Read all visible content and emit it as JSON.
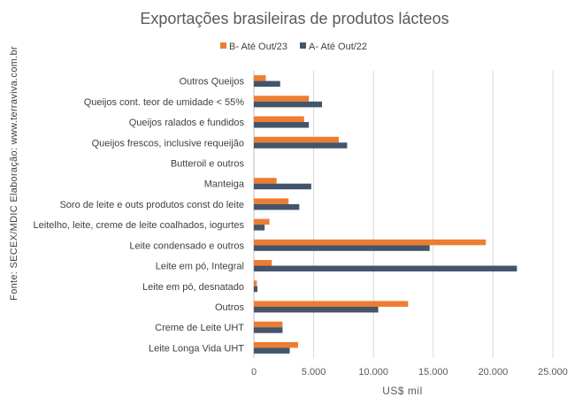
{
  "chart_data": {
    "type": "bar",
    "orientation": "horizontal",
    "title": "Exportações brasileiras de produtos lácteos",
    "xlabel": "US$ mil",
    "ylabel": "",
    "side_note": "Fonte: SECEX/MDIC      Elaboração: www.terraviva.com.br",
    "xlim": [
      0,
      25000
    ],
    "x_ticks": [
      "0",
      "5.000",
      "10.000",
      "15.000",
      "20.000",
      "25.000"
    ],
    "grid": "vertical",
    "legend_position": "top",
    "categories": [
      "Outros Queijos",
      "Queijos cont. teor de umidade < 55%",
      "Queijos ralados e fundidos",
      "Queijos frescos, inclusive requeijão",
      "Butteroil e outros",
      "Manteiga",
      "Soro de leite e outs produtos const do leite",
      "Leitelho, leite, creme de leite coalhados, iogurtes",
      "Leite condensado e outros",
      "Leite em pó, Integral",
      "Leite em pó, desnatado",
      "Outros",
      "Creme de Leite UHT",
      "Leite Longa Vida UHT"
    ],
    "series": [
      {
        "name": "B- Até Out/23",
        "color": "#ED7D31",
        "values": [
          1000,
          4600,
          4200,
          7100,
          0,
          1900,
          2900,
          1300,
          19400,
          1500,
          250,
          12900,
          2400,
          3700
        ]
      },
      {
        "name": "A- Até Out/22",
        "color": "#44546A",
        "values": [
          2200,
          5700,
          4600,
          7800,
          0,
          4800,
          3800,
          900,
          14700,
          22000,
          300,
          10400,
          2400,
          3000
        ]
      }
    ]
  }
}
